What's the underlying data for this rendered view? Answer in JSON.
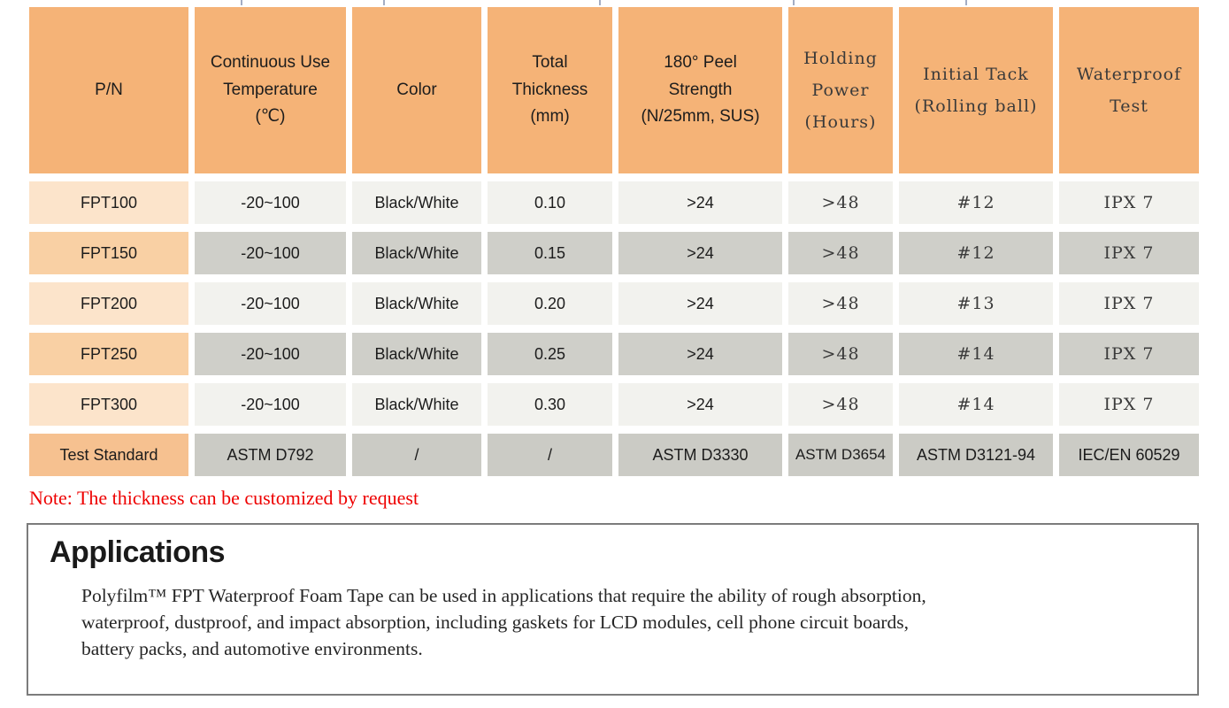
{
  "colors": {
    "header_orange": "#f5b377",
    "pn_light": "#fce4cb",
    "pn_dark": "#f9d0a4",
    "pn_test": "#f6c190",
    "data_light": "#f2f2ee",
    "data_dark": "#cfcfc9",
    "note_red": "#ee0000",
    "panel_border_gray": "#7c7c7c"
  },
  "spec_table": {
    "headers": [
      "P/N",
      "Continuous Use\nTemperature\n(℃)",
      "Color",
      "Total\nThickness\n(mm)",
      "180° Peel\nStrength\n(N/25mm, SUS)",
      "Holding\nPower\n(Hours)",
      "Initial Tack\n(Rolling ball)",
      "Waterproof\nTest"
    ],
    "rows": [
      [
        "FPT100",
        "-20~100",
        "Black/White",
        "0.10",
        ">24",
        ">48",
        "#12",
        "IPX 7"
      ],
      [
        "FPT150",
        "-20~100",
        "Black/White",
        "0.15",
        ">24",
        ">48",
        "#12",
        "IPX 7"
      ],
      [
        "FPT200",
        "-20~100",
        "Black/White",
        "0.20",
        ">24",
        ">48",
        "#13",
        "IPX 7"
      ],
      [
        "FPT250",
        "-20~100",
        "Black/White",
        "0.25",
        ">24",
        ">48",
        "#14",
        "IPX 7"
      ],
      [
        "FPT300",
        "-20~100",
        "Black/White",
        "0.30",
        ">24",
        ">48",
        "#14",
        "IPX 7"
      ],
      [
        "Test Standard",
        "ASTM D792",
        "/",
        "/",
        "ASTM D3330",
        "ASTM D3654",
        "ASTM D3121-94",
        "IEC/EN 60529"
      ]
    ]
  },
  "note": {
    "text": "Note: The thickness can be customized by request"
  },
  "applications": {
    "title": "Applications",
    "body": "Polyfilm™ FPT Waterproof Foam Tape can be used in applications that require the ability of rough absorption,\nwaterproof, dustproof, and impact absorption, including gaskets for LCD modules, cell phone circuit boards,\nbattery packs, and automotive environments."
  }
}
